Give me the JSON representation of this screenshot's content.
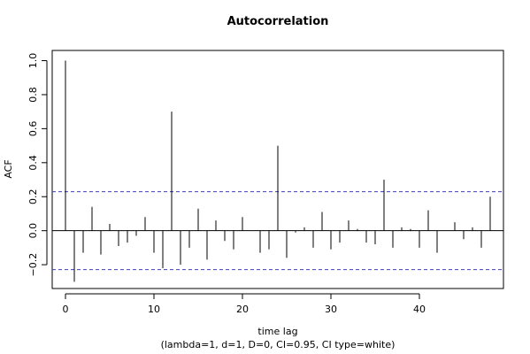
{
  "chart_data": {
    "type": "bar",
    "title": "Autocorrelation",
    "xlabel": "time lag",
    "subtitle": "(lambda=1, d=1, D=0, CI=0.95, CI type=white)",
    "ylabel": "ACF",
    "xlim": [
      -1.5,
      49.5
    ],
    "ylim": [
      -0.34,
      1.06
    ],
    "x_ticks": [
      0,
      10,
      20,
      30,
      40
    ],
    "y_ticks": [
      -0.2,
      0.0,
      0.2,
      0.4,
      0.6,
      0.8,
      1.0
    ],
    "y_tick_labels": [
      "−0.2",
      "0.0",
      "0.2",
      "0.4",
      "0.6",
      "0.8",
      "1.0"
    ],
    "confidence_bounds": [
      0.229,
      -0.229
    ],
    "grid": false,
    "colors": {
      "spikes": "#000000",
      "bounds": "#3f3fbf",
      "zero_line": "#000000"
    },
    "lags": [
      0,
      1,
      2,
      3,
      4,
      5,
      6,
      7,
      8,
      9,
      10,
      11,
      12,
      13,
      14,
      15,
      16,
      17,
      18,
      19,
      20,
      21,
      22,
      23,
      24,
      25,
      26,
      27,
      28,
      29,
      30,
      31,
      32,
      33,
      34,
      35,
      36,
      37,
      38,
      39,
      40,
      41,
      42,
      43,
      44,
      45,
      46,
      47,
      48
    ],
    "values": [
      1.0,
      -0.3,
      -0.13,
      0.14,
      -0.14,
      0.04,
      -0.09,
      -0.07,
      -0.03,
      0.08,
      -0.13,
      -0.22,
      0.7,
      -0.2,
      -0.1,
      0.13,
      -0.17,
      0.06,
      -0.06,
      -0.11,
      0.08,
      0.0,
      -0.13,
      -0.11,
      0.5,
      -0.16,
      -0.01,
      0.02,
      -0.1,
      0.11,
      -0.11,
      -0.07,
      0.06,
      0.01,
      -0.07,
      -0.08,
      0.3,
      -0.1,
      0.02,
      0.01,
      -0.1,
      0.12,
      -0.13,
      0.0,
      0.05,
      -0.05,
      0.02,
      -0.1,
      0.2
    ]
  }
}
